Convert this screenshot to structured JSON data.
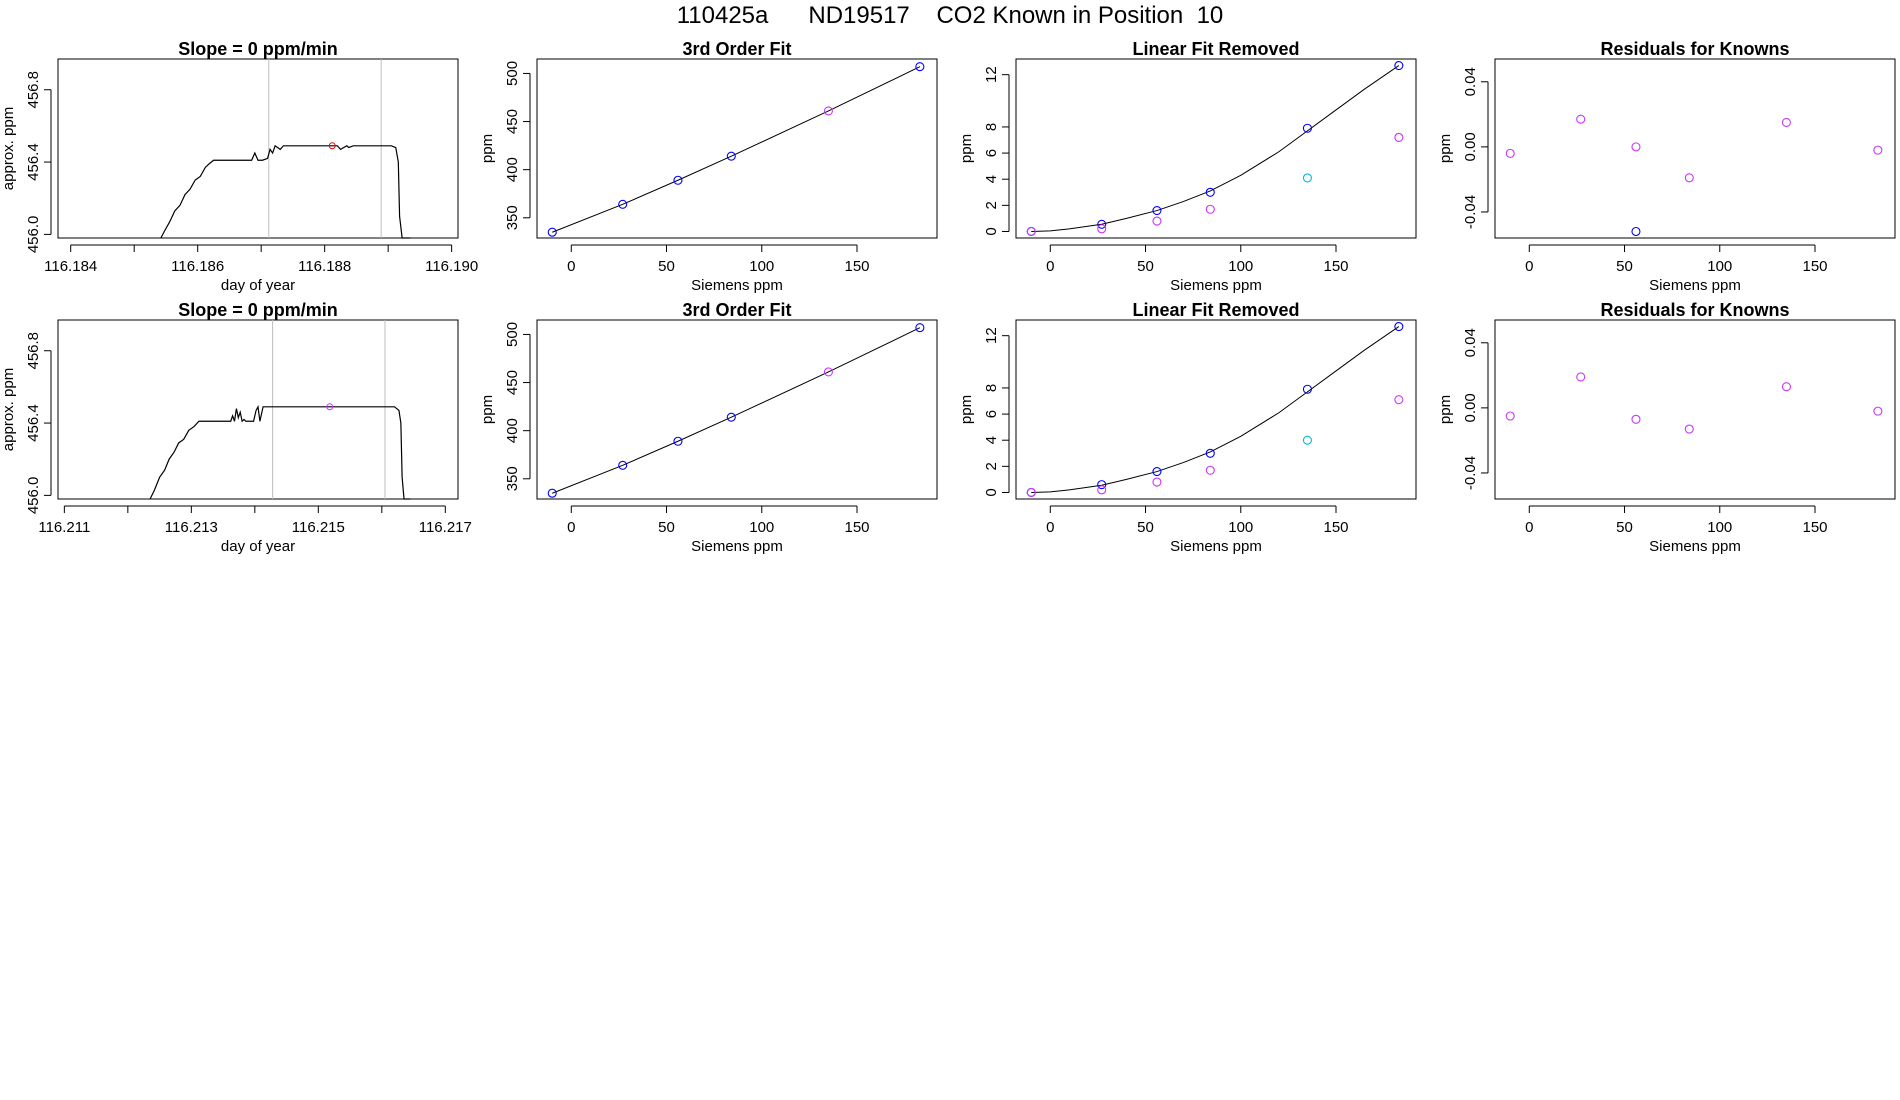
{
  "title": "110425a      ND19517    CO2 Known in Position  10",
  "colors": {
    "axis": "#000000",
    "line": "#000000",
    "vline": "#bebebe",
    "blue": "#0000ff",
    "magenta": "#cc33ff",
    "cyan": "#00bcd4",
    "red": "#ff0000"
  },
  "chart_data": [
    {
      "type": "line",
      "title": "Slope =  0  ppm/min",
      "xlabel": "day of year",
      "ylabel": "approx. ppm",
      "xlim": [
        116.1838,
        116.1901
      ],
      "ylim": [
        455.98,
        456.97
      ],
      "xticks": [
        116.184,
        116.185,
        116.186,
        116.187,
        116.188,
        116.189,
        116.19
      ],
      "xticklabels": [
        "116.184",
        "",
        "116.186",
        "",
        "116.188",
        "",
        "116.190"
      ],
      "yticks": [
        456.0,
        456.4,
        456.8
      ],
      "yticklabels": [
        "456.0",
        "456.4",
        "456.8"
      ],
      "vlines": [
        116.18712,
        116.18889
      ],
      "series": [
        {
          "x": [
            116.18542,
            116.18548,
            116.18556,
            116.18564,
            116.18572,
            116.1858,
            116.18588,
            116.18596,
            116.18604,
            116.18612,
            116.18618,
            116.18625,
            116.18685,
            116.1869,
            116.18695,
            116.18702,
            116.1871,
            116.18714,
            116.18718,
            116.18722,
            116.1873,
            116.18735,
            116.1874,
            116.18745,
            116.1882,
            116.18825,
            116.18835,
            116.18838,
            116.18845,
            116.18905,
            116.18912,
            116.18916,
            116.18918,
            116.18922,
            116.18935
          ],
          "y": [
            455.98,
            456.02,
            456.07,
            456.13,
            456.16,
            456.22,
            456.25,
            456.3,
            456.32,
            456.37,
            456.39,
            456.41,
            456.41,
            456.45,
            456.41,
            456.41,
            456.42,
            456.47,
            456.45,
            456.49,
            456.47,
            456.49,
            456.49,
            456.49,
            456.49,
            456.47,
            456.49,
            456.48,
            456.49,
            456.49,
            456.48,
            456.4,
            456.1,
            455.98,
            455.98
          ]
        }
      ],
      "points": [
        {
          "x": 116.18812,
          "y": 456.49,
          "color": "red"
        }
      ]
    },
    {
      "type": "scatter",
      "title": "3rd Order Fit",
      "xlabel": "Siemens ppm",
      "ylabel": "ppm",
      "xlim": [
        -18,
        192
      ],
      "ylim": [
        329,
        515
      ],
      "xticks": [
        0,
        50,
        100,
        150
      ],
      "yticks": [
        350,
        400,
        450,
        500
      ],
      "curve": {
        "x": [
          -10,
          27,
          56,
          84,
          135,
          183
        ],
        "y": [
          335,
          364,
          389,
          414,
          461,
          507
        ]
      },
      "series": [
        {
          "name": "blue",
          "x": [
            -10,
            27,
            56,
            84,
            183
          ],
          "y": [
            335,
            364,
            389,
            414,
            507
          ],
          "color": "blue"
        },
        {
          "name": "magenta",
          "x": [
            135
          ],
          "y": [
            461
          ],
          "color": "magenta"
        }
      ]
    },
    {
      "type": "scatter",
      "title": "Linear Fit Removed",
      "xlabel": "Siemens ppm",
      "ylabel": "ppm",
      "xlim": [
        -18,
        192
      ],
      "ylim": [
        -0.5,
        13.2
      ],
      "xticks": [
        0,
        50,
        100,
        150
      ],
      "yticks": [
        0,
        2,
        4,
        6,
        8,
        12
      ],
      "curve": {
        "x": [
          -10,
          0,
          10,
          27,
          40,
          56,
          70,
          84,
          100,
          120,
          135,
          150,
          165,
          183
        ],
        "y": [
          0,
          0.05,
          0.2,
          0.55,
          1.0,
          1.6,
          2.3,
          3.1,
          4.3,
          6.1,
          7.7,
          9.3,
          10.9,
          12.7
        ]
      },
      "series": [
        {
          "name": "blue",
          "x": [
            -10,
            27,
            56,
            84,
            135,
            183
          ],
          "y": [
            0,
            0.55,
            1.6,
            3.0,
            7.9,
            12.7
          ],
          "color": "blue"
        },
        {
          "name": "magenta",
          "x": [
            -10,
            27,
            56,
            84,
            183
          ],
          "y": [
            0,
            0.2,
            0.8,
            1.7,
            7.2
          ],
          "color": "magenta"
        },
        {
          "name": "cyan",
          "x": [
            135
          ],
          "y": [
            4.1
          ],
          "color": "cyan"
        }
      ]
    },
    {
      "type": "scatter",
      "title": "Residuals for Knowns",
      "xlabel": "Siemens ppm",
      "ylabel": "ppm",
      "xlim": [
        -18,
        192
      ],
      "ylim": [
        -0.056,
        0.054
      ],
      "xticks": [
        0,
        50,
        100,
        150
      ],
      "yticks": [
        -0.04,
        0.0,
        0.04
      ],
      "yticklabels": [
        "-0.04",
        "0.00",
        "0.04"
      ],
      "series": [
        {
          "name": "magenta",
          "x": [
            -10,
            27,
            56,
            84,
            135,
            183
          ],
          "y": [
            -0.004,
            0.017,
            -0.0,
            -0.019,
            0.015,
            -0.002
          ],
          "color": "magenta"
        },
        {
          "name": "blue",
          "x": [
            56
          ],
          "y": [
            -0.052
          ],
          "color": "blue"
        }
      ]
    },
    {
      "type": "line",
      "title": "Slope =  0  ppm/min",
      "xlabel": "day of year",
      "ylabel": "approx. ppm",
      "xlim": [
        116.2109,
        116.2172
      ],
      "ylim": [
        455.98,
        456.97
      ],
      "xticks": [
        116.211,
        116.212,
        116.213,
        116.214,
        116.215,
        116.216,
        116.217
      ],
      "xticklabels": [
        "116.211",
        "",
        "116.213",
        "",
        "116.215",
        "",
        "116.217"
      ],
      "yticks": [
        456.0,
        456.4,
        456.8
      ],
      "yticklabels": [
        "456.0",
        "456.4",
        "456.8"
      ],
      "vlines": [
        116.21428,
        116.21605
      ],
      "series": [
        {
          "x": [
            116.21235,
            116.21242,
            116.2125,
            116.21258,
            116.21265,
            116.21273,
            116.2128,
            116.21288,
            116.21296,
            116.21304,
            116.21312,
            116.21318,
            116.21362,
            116.21365,
            116.21368,
            116.21371,
            116.21374,
            116.21377,
            116.2138,
            116.21383,
            116.21386,
            116.21389,
            116.21398,
            116.21402,
            116.21405,
            116.21408,
            116.21413,
            116.21417,
            116.21423,
            116.2162,
            116.21627,
            116.2163,
            116.21632,
            116.21635,
            116.21645
          ],
          "y": [
            455.98,
            456.03,
            456.1,
            456.14,
            456.2,
            456.24,
            456.29,
            456.31,
            456.36,
            456.38,
            456.41,
            456.41,
            456.41,
            456.44,
            456.41,
            456.48,
            456.43,
            456.46,
            456.41,
            456.42,
            456.41,
            456.41,
            456.41,
            456.47,
            456.49,
            456.41,
            456.49,
            456.49,
            456.49,
            456.49,
            456.47,
            456.4,
            456.1,
            455.98,
            455.98
          ]
        }
      ],
      "points": [
        {
          "x": 116.21518,
          "y": 456.49,
          "color": "magenta"
        }
      ]
    },
    {
      "type": "scatter",
      "title": "3rd Order Fit",
      "xlabel": "Siemens ppm",
      "ylabel": "ppm",
      "xlim": [
        -18,
        192
      ],
      "ylim": [
        329,
        515
      ],
      "xticks": [
        0,
        50,
        100,
        150
      ],
      "yticks": [
        350,
        400,
        450,
        500
      ],
      "curve": {
        "x": [
          -10,
          27,
          56,
          84,
          135,
          183
        ],
        "y": [
          335,
          364,
          389,
          414,
          461,
          507
        ]
      },
      "series": [
        {
          "name": "blue",
          "x": [
            -10,
            27,
            56,
            84,
            183
          ],
          "y": [
            335,
            364,
            389,
            414,
            507
          ],
          "color": "blue"
        },
        {
          "name": "magenta",
          "x": [
            135
          ],
          "y": [
            461
          ],
          "color": "magenta"
        }
      ]
    },
    {
      "type": "scatter",
      "title": "Linear Fit Removed",
      "xlabel": "Siemens ppm",
      "ylabel": "ppm",
      "xlim": [
        -18,
        192
      ],
      "ylim": [
        -0.5,
        13.2
      ],
      "xticks": [
        0,
        50,
        100,
        150
      ],
      "yticks": [
        0,
        2,
        4,
        6,
        8,
        12
      ],
      "curve": {
        "x": [
          -10,
          0,
          10,
          27,
          40,
          56,
          70,
          84,
          100,
          120,
          135,
          150,
          165,
          183
        ],
        "y": [
          0,
          0.05,
          0.2,
          0.55,
          1.0,
          1.6,
          2.3,
          3.1,
          4.3,
          6.1,
          7.7,
          9.3,
          10.9,
          12.7
        ]
      },
      "series": [
        {
          "name": "blue",
          "x": [
            -10,
            27,
            56,
            84,
            135,
            183
          ],
          "y": [
            0,
            0.6,
            1.6,
            3.0,
            7.9,
            12.7
          ],
          "color": "blue"
        },
        {
          "name": "magenta",
          "x": [
            -10,
            27,
            56,
            84,
            183
          ],
          "y": [
            0,
            0.2,
            0.8,
            1.7,
            7.1
          ],
          "color": "magenta"
        },
        {
          "name": "cyan",
          "x": [
            135
          ],
          "y": [
            4.0
          ],
          "color": "cyan"
        }
      ]
    },
    {
      "type": "scatter",
      "title": "Residuals for Knowns",
      "xlabel": "Siemens ppm",
      "ylabel": "ppm",
      "xlim": [
        -18,
        192
      ],
      "ylim": [
        -0.056,
        0.054
      ],
      "xticks": [
        0,
        50,
        100,
        150
      ],
      "yticks": [
        -0.04,
        0.0,
        0.04
      ],
      "yticklabels": [
        "-0.04",
        "0.00",
        "0.04"
      ],
      "series": [
        {
          "name": "magenta",
          "x": [
            -10,
            27,
            56,
            84,
            135,
            183
          ],
          "y": [
            -0.005,
            0.019,
            -0.007,
            -0.013,
            0.013,
            -0.002
          ],
          "color": "magenta"
        }
      ]
    }
  ]
}
